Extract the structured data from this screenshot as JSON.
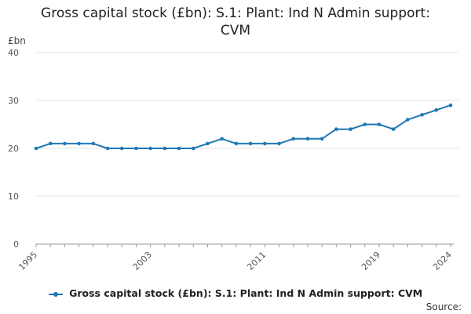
{
  "chart_data": {
    "type": "line",
    "title": "Gross capital stock (£bn): S.1: Plant: Ind N Admin support: CVM",
    "title_lines": [
      "Gross capital stock (£bn): S.1: Plant: Ind N Admin support:",
      "CVM"
    ],
    "ylabel": "£bn",
    "xlabel": "",
    "ylim": [
      0,
      40
    ],
    "yticks": [
      "0",
      "10",
      "20",
      "30",
      "40"
    ],
    "xtick_labels": [
      "1995",
      "2003",
      "2011",
      "2019",
      "2024"
    ],
    "grid": true,
    "legend_position": "bottom",
    "color": "#1f78b4",
    "series": [
      {
        "name": "Gross capital stock (£bn): S.1: Plant: Ind N Admin support: CVM",
        "x": [
          1995,
          1996,
          1997,
          1998,
          1999,
          2000,
          2001,
          2002,
          2003,
          2004,
          2005,
          2006,
          2007,
          2008,
          2009,
          2010,
          2011,
          2012,
          2013,
          2014,
          2015,
          2016,
          2017,
          2018,
          2019,
          2020,
          2021,
          2022,
          2023,
          2024
        ],
        "values": [
          20,
          21,
          21,
          21,
          21,
          20,
          20,
          20,
          20,
          20,
          20,
          20,
          21,
          22,
          21,
          21,
          21,
          21,
          22,
          22,
          22,
          24,
          24,
          25,
          25,
          24,
          26,
          27,
          28,
          29
        ]
      }
    ]
  },
  "legend": {
    "label": "Gross capital stock (£bn): S.1: Plant: Ind N Admin support: CVM"
  },
  "footer": {
    "source": "Source:"
  }
}
